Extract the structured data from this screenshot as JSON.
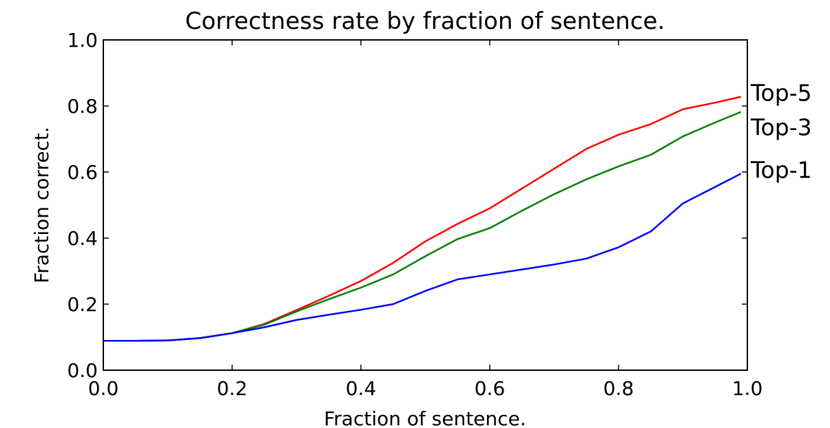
{
  "chart_data": {
    "type": "line",
    "title": "Correctness rate by fraction of sentence.",
    "xlabel": "Fraction of sentence.",
    "ylabel": "Fraction correct.",
    "xlim": [
      0.0,
      1.0
    ],
    "ylim": [
      0.0,
      1.0
    ],
    "xticks": [
      "0.0",
      "0.2",
      "0.4",
      "0.6",
      "0.8",
      "1.0"
    ],
    "yticks": [
      "0.0",
      "0.2",
      "0.4",
      "0.6",
      "0.8",
      "1.0"
    ],
    "grid": false,
    "legend": "inline labels at right end of each line",
    "series": [
      {
        "name": "Top-5",
        "color": "#ff0000",
        "x": [
          0.0,
          0.05,
          0.1,
          0.15,
          0.2,
          0.25,
          0.3,
          0.35,
          0.4,
          0.45,
          0.5,
          0.55,
          0.6,
          0.65,
          0.7,
          0.75,
          0.8,
          0.85,
          0.9,
          0.95,
          0.99
        ],
        "y": [
          0.089,
          0.089,
          0.09,
          0.097,
          0.112,
          0.14,
          0.182,
          0.225,
          0.27,
          0.325,
          0.39,
          0.443,
          0.49,
          0.55,
          0.61,
          0.67,
          0.713,
          0.745,
          0.79,
          0.81,
          0.828
        ]
      },
      {
        "name": "Top-3",
        "color": "#008000",
        "x": [
          0.0,
          0.05,
          0.1,
          0.15,
          0.2,
          0.25,
          0.3,
          0.35,
          0.4,
          0.45,
          0.5,
          0.55,
          0.6,
          0.65,
          0.7,
          0.75,
          0.8,
          0.85,
          0.9,
          0.95,
          0.99
        ],
        "y": [
          0.089,
          0.089,
          0.09,
          0.097,
          0.112,
          0.138,
          0.178,
          0.215,
          0.25,
          0.29,
          0.345,
          0.397,
          0.43,
          0.483,
          0.533,
          0.578,
          0.617,
          0.652,
          0.708,
          0.75,
          0.782
        ]
      },
      {
        "name": "Top-1",
        "color": "#0000ff",
        "x": [
          0.0,
          0.05,
          0.1,
          0.15,
          0.2,
          0.25,
          0.3,
          0.35,
          0.4,
          0.45,
          0.5,
          0.55,
          0.6,
          0.65,
          0.7,
          0.75,
          0.8,
          0.85,
          0.9,
          0.95,
          0.99
        ],
        "y": [
          0.089,
          0.089,
          0.09,
          0.097,
          0.112,
          0.13,
          0.152,
          0.168,
          0.183,
          0.2,
          0.24,
          0.275,
          0.29,
          0.305,
          0.32,
          0.338,
          0.372,
          0.42,
          0.505,
          0.555,
          0.595
        ]
      }
    ]
  }
}
